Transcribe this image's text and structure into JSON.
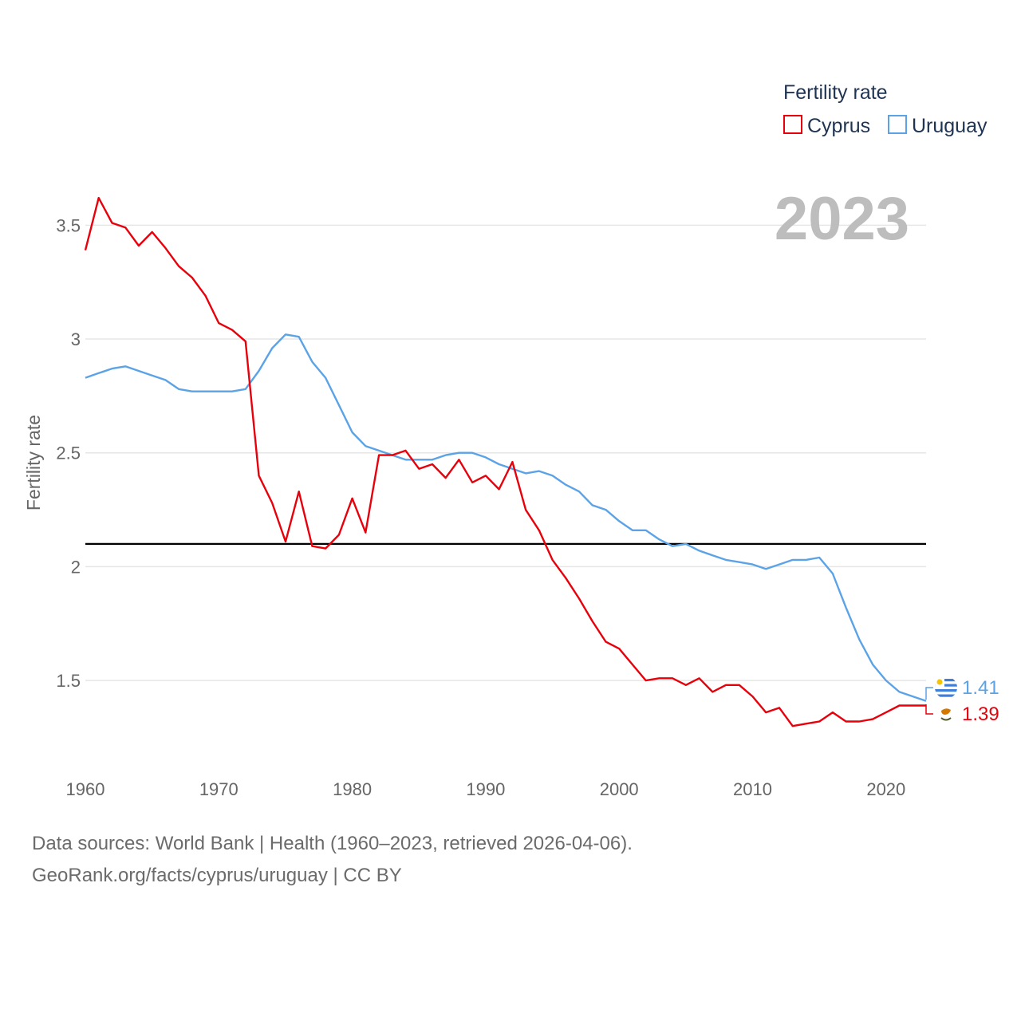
{
  "chart_data": {
    "type": "line",
    "title": "2023",
    "xlabel": "",
    "ylabel": "Fertility rate",
    "xlim": [
      1960,
      2023
    ],
    "ylim": [
      1.15,
      3.75
    ],
    "xticks": [
      1960,
      1970,
      1980,
      1990,
      2000,
      2010,
      2020
    ],
    "xtick_labels": [
      "1960",
      "1970",
      "1980",
      "1990",
      "2000",
      "2010",
      "2020"
    ],
    "yticks": [
      1.5,
      2,
      2.5,
      3,
      3.5
    ],
    "ytick_labels": [
      "1.5",
      "2",
      "2.5",
      "3",
      "3.5"
    ],
    "grid": true,
    "legend": {
      "title": "Fertility rate",
      "position": "top-right",
      "entries": [
        "Cyprus",
        "Uruguay"
      ]
    },
    "reference_line": {
      "y": 2.1,
      "color": "#000000"
    },
    "x": [
      1960,
      1961,
      1962,
      1963,
      1964,
      1965,
      1966,
      1967,
      1968,
      1969,
      1970,
      1971,
      1972,
      1973,
      1974,
      1975,
      1976,
      1977,
      1978,
      1979,
      1980,
      1981,
      1982,
      1983,
      1984,
      1985,
      1986,
      1987,
      1988,
      1989,
      1990,
      1991,
      1992,
      1993,
      1994,
      1995,
      1996,
      1997,
      1998,
      1999,
      2000,
      2001,
      2002,
      2003,
      2004,
      2005,
      2006,
      2007,
      2008,
      2009,
      2010,
      2011,
      2012,
      2013,
      2014,
      2015,
      2016,
      2017,
      2018,
      2019,
      2020,
      2021,
      2022,
      2023
    ],
    "series": [
      {
        "name": "Cyprus",
        "color": "#e8000b",
        "end_label": "1.39",
        "values": [
          3.39,
          3.62,
          3.51,
          3.49,
          3.41,
          3.47,
          3.4,
          3.32,
          3.27,
          3.19,
          3.07,
          3.04,
          2.99,
          2.4,
          2.28,
          2.11,
          2.33,
          2.09,
          2.08,
          2.14,
          2.3,
          2.15,
          2.49,
          2.49,
          2.51,
          2.43,
          2.45,
          2.39,
          2.47,
          2.37,
          2.4,
          2.34,
          2.46,
          2.25,
          2.16,
          2.03,
          1.95,
          1.86,
          1.76,
          1.67,
          1.64,
          1.57,
          1.5,
          1.51,
          1.51,
          1.48,
          1.51,
          1.45,
          1.48,
          1.48,
          1.43,
          1.36,
          1.38,
          1.3,
          1.31,
          1.32,
          1.36,
          1.32,
          1.32,
          1.33,
          1.36,
          1.39,
          1.39,
          1.39
        ]
      },
      {
        "name": "Uruguay",
        "color": "#5ba3e6",
        "end_label": "1.41",
        "values": [
          2.83,
          2.85,
          2.87,
          2.88,
          2.86,
          2.84,
          2.82,
          2.78,
          2.77,
          2.77,
          2.77,
          2.77,
          2.78,
          2.86,
          2.96,
          3.02,
          3.01,
          2.9,
          2.83,
          2.71,
          2.59,
          2.53,
          2.51,
          2.49,
          2.47,
          2.47,
          2.47,
          2.49,
          2.5,
          2.5,
          2.48,
          2.45,
          2.43,
          2.41,
          2.42,
          2.4,
          2.36,
          2.33,
          2.27,
          2.25,
          2.2,
          2.16,
          2.16,
          2.12,
          2.09,
          2.1,
          2.07,
          2.05,
          2.03,
          2.02,
          2.01,
          1.99,
          2.01,
          2.03,
          2.03,
          2.04,
          1.97,
          1.82,
          1.68,
          1.57,
          1.5,
          1.45,
          1.43,
          1.41
        ]
      }
    ]
  },
  "footer": {
    "line1": "Data sources: World Bank | Health (1960–2023, retrieved 2026-04-06).",
    "line2": "GeoRank.org/facts/cyprus/uruguay | CC BY"
  }
}
